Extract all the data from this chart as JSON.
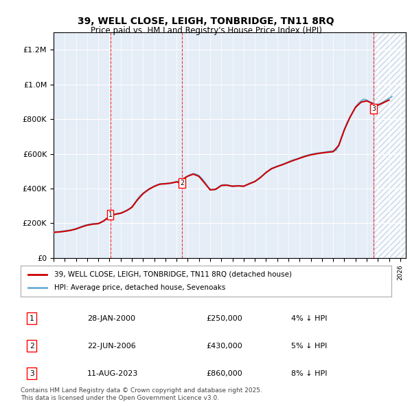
{
  "title": "39, WELL CLOSE, LEIGH, TONBRIDGE, TN11 8RQ",
  "subtitle": "Price paid vs. HM Land Registry's House Price Index (HPI)",
  "legend_line1": "39, WELL CLOSE, LEIGH, TONBRIDGE, TN11 8RQ (detached house)",
  "legend_line2": "HPI: Average price, detached house, Sevenoaks",
  "footer": "Contains HM Land Registry data © Crown copyright and database right 2025.\nThis data is licensed under the Open Government Licence v3.0.",
  "transactions": [
    {
      "num": 1,
      "date": "28-JAN-2000",
      "price": 250000,
      "pct": "4%",
      "dir": "↓",
      "year": 2000.07
    },
    {
      "num": 2,
      "date": "22-JUN-2006",
      "price": 430000,
      "pct": "5%",
      "dir": "↓",
      "year": 2006.47
    },
    {
      "num": 3,
      "date": "11-AUG-2023",
      "price": 860000,
      "pct": "8%",
      "dir": "↓",
      "year": 2023.62
    }
  ],
  "hpi_color": "#6baed6",
  "price_color": "#cc0000",
  "bg_color": "#f0f4fa",
  "hatch_color": "#c8d8ee",
  "ylim": [
    0,
    1300000
  ],
  "xlim_start": 1995.0,
  "xlim_end": 2026.5,
  "hpi_data": {
    "years": [
      1995.0,
      1995.25,
      1995.5,
      1995.75,
      1996.0,
      1996.25,
      1996.5,
      1996.75,
      1997.0,
      1997.25,
      1997.5,
      1997.75,
      1998.0,
      1998.25,
      1998.5,
      1998.75,
      1999.0,
      1999.25,
      1999.5,
      1999.75,
      2000.0,
      2000.25,
      2000.5,
      2000.75,
      2001.0,
      2001.25,
      2001.5,
      2001.75,
      2002.0,
      2002.25,
      2002.5,
      2002.75,
      2003.0,
      2003.25,
      2003.5,
      2003.75,
      2004.0,
      2004.25,
      2004.5,
      2004.75,
      2005.0,
      2005.25,
      2005.5,
      2005.75,
      2006.0,
      2006.25,
      2006.5,
      2006.75,
      2007.0,
      2007.25,
      2007.5,
      2007.75,
      2008.0,
      2008.25,
      2008.5,
      2008.75,
      2009.0,
      2009.25,
      2009.5,
      2009.75,
      2010.0,
      2010.25,
      2010.5,
      2010.75,
      2011.0,
      2011.25,
      2011.5,
      2011.75,
      2012.0,
      2012.25,
      2012.5,
      2012.75,
      2013.0,
      2013.25,
      2013.5,
      2013.75,
      2014.0,
      2014.25,
      2014.5,
      2014.75,
      2015.0,
      2015.25,
      2015.5,
      2015.75,
      2016.0,
      2016.25,
      2016.5,
      2016.75,
      2017.0,
      2017.25,
      2017.5,
      2017.75,
      2018.0,
      2018.25,
      2018.5,
      2018.75,
      2019.0,
      2019.25,
      2019.5,
      2019.75,
      2020.0,
      2020.25,
      2020.5,
      2020.75,
      2021.0,
      2021.25,
      2021.5,
      2021.75,
      2022.0,
      2022.25,
      2022.5,
      2022.75,
      2023.0,
      2023.25,
      2023.5,
      2023.75,
      2024.0,
      2024.25,
      2024.5,
      2024.75,
      2025.0,
      2025.25
    ],
    "values": [
      148000,
      150000,
      150500,
      152000,
      155000,
      157000,
      160000,
      163000,
      168000,
      174000,
      180000,
      186000,
      190000,
      194000,
      196000,
      197000,
      198000,
      205000,
      215000,
      228000,
      240000,
      248000,
      252000,
      255000,
      258000,
      264000,
      272000,
      280000,
      294000,
      315000,
      338000,
      358000,
      372000,
      385000,
      396000,
      405000,
      413000,
      420000,
      425000,
      428000,
      428000,
      430000,
      432000,
      435000,
      439000,
      444000,
      452000,
      462000,
      472000,
      480000,
      485000,
      482000,
      474000,
      458000,
      438000,
      415000,
      395000,
      392000,
      397000,
      408000,
      418000,
      422000,
      420000,
      416000,
      413000,
      415000,
      416000,
      415000,
      413000,
      420000,
      428000,
      435000,
      441000,
      452000,
      465000,
      478000,
      492000,
      505000,
      516000,
      522000,
      528000,
      534000,
      540000,
      546000,
      553000,
      560000,
      566000,
      570000,
      576000,
      583000,
      588000,
      592000,
      596000,
      600000,
      603000,
      605000,
      607000,
      609000,
      612000,
      614000,
      617000,
      620000,
      650000,
      695000,
      740000,
      780000,
      810000,
      840000,
      870000,
      890000,
      905000,
      915000,
      910000,
      900000,
      890000,
      885000,
      885000,
      890000,
      900000,
      910000,
      920000,
      930000
    ]
  },
  "price_data": {
    "years": [
      1995.0,
      1995.5,
      1996.0,
      1996.5,
      1997.0,
      1997.5,
      1998.0,
      1998.5,
      1999.0,
      1999.5,
      2000.0,
      2000.5,
      2001.0,
      2001.5,
      2002.0,
      2002.5,
      2003.0,
      2003.5,
      2004.0,
      2004.5,
      2005.0,
      2005.5,
      2006.0,
      2006.47,
      2006.5,
      2007.0,
      2007.5,
      2008.0,
      2008.5,
      2009.0,
      2009.5,
      2010.0,
      2010.5,
      2011.0,
      2011.5,
      2012.0,
      2012.5,
      2013.0,
      2013.5,
      2014.0,
      2014.5,
      2015.0,
      2015.5,
      2016.0,
      2016.5,
      2017.0,
      2017.5,
      2018.0,
      2018.5,
      2019.0,
      2019.5,
      2020.0,
      2020.5,
      2021.0,
      2021.5,
      2022.0,
      2022.5,
      2023.0,
      2023.5,
      2023.62,
      2024.0,
      2024.5,
      2025.0
    ],
    "values": [
      147000,
      149000,
      153000,
      158000,
      166000,
      178000,
      188000,
      194000,
      197000,
      213000,
      238000,
      251000,
      257000,
      271000,
      291000,
      334000,
      370000,
      394000,
      412000,
      425000,
      427000,
      431000,
      438000,
      430000,
      451000,
      471000,
      483000,
      470000,
      432000,
      392000,
      395000,
      417000,
      419000,
      413000,
      415000,
      413000,
      427000,
      440000,
      463000,
      492000,
      514000,
      527000,
      538000,
      551000,
      563000,
      574000,
      585000,
      594000,
      600000,
      605000,
      609000,
      612000,
      648000,
      738000,
      810000,
      868000,
      898000,
      905000,
      892000,
      860000,
      880000,
      895000,
      910000
    ]
  }
}
